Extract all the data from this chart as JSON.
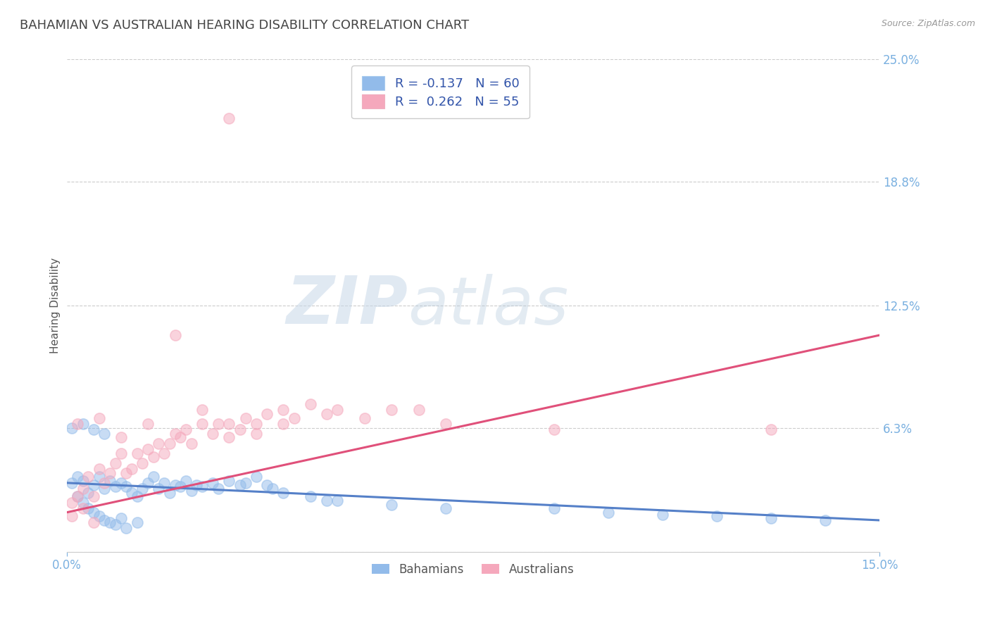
{
  "title": "BAHAMIAN VS AUSTRALIAN HEARING DISABILITY CORRELATION CHART",
  "source": "Source: ZipAtlas.com",
  "ylabel": "Hearing Disability",
  "x_min": 0.0,
  "x_max": 0.15,
  "y_min": 0.0,
  "y_max": 0.25,
  "y_ticks": [
    0.0,
    0.063,
    0.125,
    0.188,
    0.25
  ],
  "y_tick_labels": [
    "",
    "6.3%",
    "12.5%",
    "18.8%",
    "25.0%"
  ],
  "legend_label1": "Bahamians",
  "legend_label2": "Australians",
  "legend_r1": "R = -0.137",
  "legend_n1": "N = 60",
  "legend_r2": "R =  0.262",
  "legend_n2": "N = 55",
  "color_blue": "#92bbea",
  "color_pink": "#f5a8bc",
  "line_color_blue": "#5580c8",
  "line_color_pink": "#e0507a",
  "watermark_zip": "ZIP",
  "watermark_atlas": "atlas",
  "background_color": "#ffffff",
  "grid_color": "#cccccc",
  "title_color": "#444444",
  "axis_label_color": "#555555",
  "tick_color": "#7ab0e0",
  "blue_line_start_y": 0.035,
  "blue_line_end_y": 0.016,
  "pink_line_start_y": 0.02,
  "pink_line_end_y": 0.11,
  "blue_x": [
    0.001,
    0.002,
    0.002,
    0.003,
    0.003,
    0.004,
    0.004,
    0.005,
    0.005,
    0.006,
    0.006,
    0.007,
    0.007,
    0.008,
    0.008,
    0.009,
    0.009,
    0.01,
    0.01,
    0.011,
    0.011,
    0.012,
    0.013,
    0.013,
    0.014,
    0.015,
    0.016,
    0.017,
    0.018,
    0.019,
    0.02,
    0.021,
    0.022,
    0.023,
    0.024,
    0.025,
    0.027,
    0.028,
    0.03,
    0.032,
    0.033,
    0.035,
    0.037,
    0.038,
    0.04,
    0.045,
    0.048,
    0.05,
    0.06,
    0.07,
    0.09,
    0.1,
    0.11,
    0.12,
    0.13,
    0.14,
    0.001,
    0.003,
    0.005,
    0.007
  ],
  "blue_y": [
    0.035,
    0.038,
    0.028,
    0.036,
    0.025,
    0.03,
    0.022,
    0.034,
    0.02,
    0.038,
    0.018,
    0.032,
    0.016,
    0.036,
    0.015,
    0.033,
    0.014,
    0.035,
    0.017,
    0.033,
    0.012,
    0.03,
    0.028,
    0.015,
    0.032,
    0.035,
    0.038,
    0.032,
    0.035,
    0.03,
    0.034,
    0.033,
    0.036,
    0.031,
    0.034,
    0.033,
    0.035,
    0.032,
    0.036,
    0.034,
    0.035,
    0.038,
    0.034,
    0.032,
    0.03,
    0.028,
    0.026,
    0.026,
    0.024,
    0.022,
    0.022,
    0.02,
    0.019,
    0.018,
    0.017,
    0.016,
    0.063,
    0.065,
    0.062,
    0.06
  ],
  "pink_x": [
    0.001,
    0.001,
    0.002,
    0.003,
    0.003,
    0.004,
    0.005,
    0.005,
    0.006,
    0.007,
    0.008,
    0.009,
    0.01,
    0.011,
    0.012,
    0.013,
    0.014,
    0.015,
    0.016,
    0.017,
    0.018,
    0.019,
    0.02,
    0.021,
    0.022,
    0.023,
    0.025,
    0.027,
    0.028,
    0.03,
    0.032,
    0.033,
    0.035,
    0.037,
    0.04,
    0.042,
    0.045,
    0.048,
    0.05,
    0.055,
    0.06,
    0.065,
    0.07,
    0.09,
    0.13,
    0.002,
    0.006,
    0.01,
    0.015,
    0.02,
    0.025,
    0.03,
    0.035,
    0.04,
    0.03
  ],
  "pink_y": [
    0.025,
    0.018,
    0.028,
    0.032,
    0.022,
    0.038,
    0.028,
    0.015,
    0.042,
    0.035,
    0.04,
    0.045,
    0.05,
    0.04,
    0.042,
    0.05,
    0.045,
    0.052,
    0.048,
    0.055,
    0.05,
    0.055,
    0.06,
    0.058,
    0.062,
    0.055,
    0.065,
    0.06,
    0.065,
    0.065,
    0.062,
    0.068,
    0.065,
    0.07,
    0.072,
    0.068,
    0.075,
    0.07,
    0.072,
    0.068,
    0.072,
    0.072,
    0.065,
    0.062,
    0.062,
    0.065,
    0.068,
    0.058,
    0.065,
    0.11,
    0.072,
    0.058,
    0.06,
    0.065,
    0.22
  ]
}
